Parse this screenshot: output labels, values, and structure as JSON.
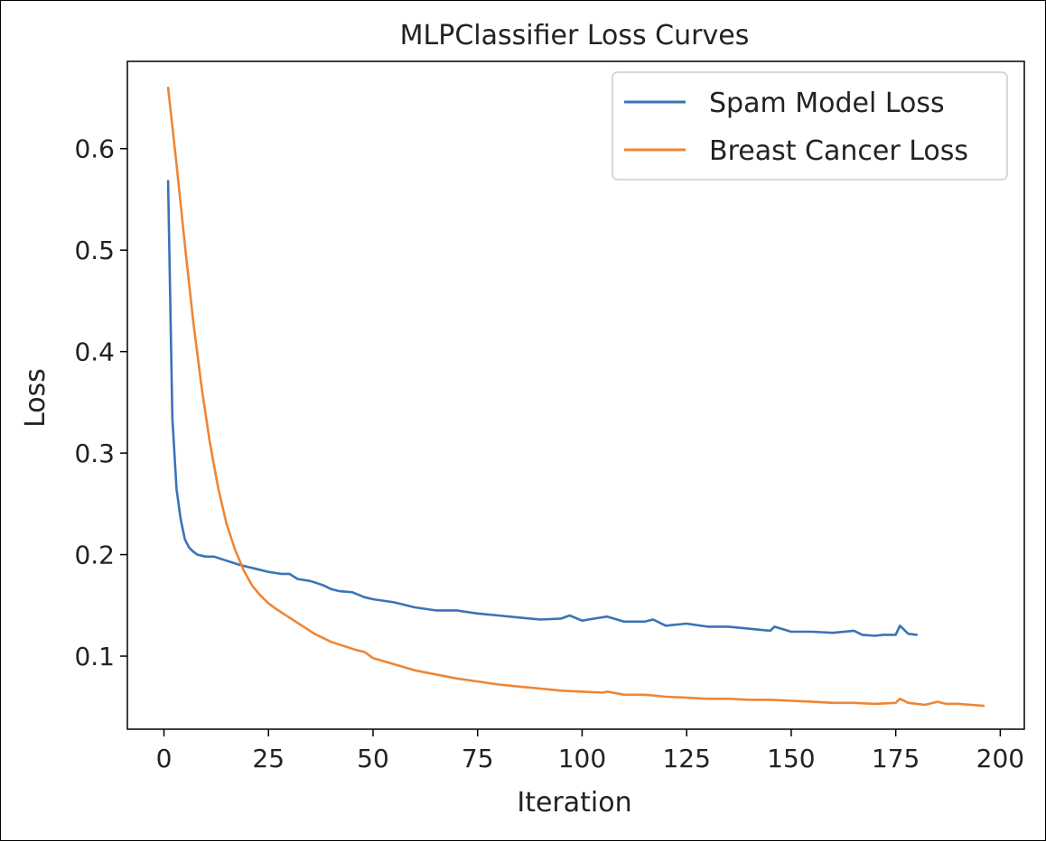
{
  "chart_data": {
    "type": "line",
    "title": "MLPClassifier Loss Curves",
    "xlabel": "Iteration",
    "ylabel": "Loss",
    "xlim": [
      -8.75,
      205.75
    ],
    "ylim": [
      0.028,
      0.686
    ],
    "xticks": [
      0,
      25,
      50,
      75,
      100,
      125,
      150,
      175,
      200
    ],
    "yticks": [
      0.1,
      0.2,
      0.3,
      0.4,
      0.5,
      0.6
    ],
    "xtick_labels": [
      "0",
      "25",
      "50",
      "75",
      "100",
      "125",
      "150",
      "175",
      "200"
    ],
    "ytick_labels": [
      "0.1",
      "0.2",
      "0.3",
      "0.4",
      "0.5",
      "0.6"
    ],
    "grid": false,
    "legend_position": "top-right",
    "series": [
      {
        "name": "Spam Model Loss",
        "color": "#3a73b8",
        "x": [
          1,
          2,
          3,
          4,
          5,
          6,
          7,
          8,
          10,
          12,
          15,
          18,
          20,
          22,
          25,
          28,
          30,
          32,
          35,
          38,
          40,
          42,
          45,
          48,
          50,
          55,
          60,
          65,
          70,
          75,
          80,
          85,
          90,
          95,
          97,
          100,
          103,
          106,
          110,
          115,
          117,
          120,
          125,
          130,
          135,
          140,
          145,
          146,
          150,
          155,
          160,
          165,
          167,
          170,
          172,
          175,
          176,
          178,
          180
        ],
        "y": [
          0.568,
          0.335,
          0.265,
          0.235,
          0.215,
          0.207,
          0.203,
          0.2,
          0.198,
          0.198,
          0.194,
          0.19,
          0.188,
          0.186,
          0.183,
          0.181,
          0.181,
          0.176,
          0.174,
          0.17,
          0.166,
          0.164,
          0.163,
          0.158,
          0.156,
          0.153,
          0.148,
          0.145,
          0.145,
          0.142,
          0.14,
          0.138,
          0.136,
          0.137,
          0.14,
          0.135,
          0.137,
          0.139,
          0.134,
          0.134,
          0.136,
          0.13,
          0.132,
          0.129,
          0.129,
          0.127,
          0.125,
          0.129,
          0.124,
          0.124,
          0.123,
          0.125,
          0.121,
          0.12,
          0.121,
          0.121,
          0.13,
          0.122,
          0.121
        ]
      },
      {
        "name": "Breast Cancer Loss",
        "color": "#ef8534",
        "x": [
          1,
          3,
          5,
          7,
          9,
          11,
          13,
          15,
          17,
          19,
          21,
          23,
          25,
          27,
          30,
          33,
          36,
          40,
          43,
          46,
          48,
          50,
          55,
          60,
          65,
          70,
          75,
          80,
          85,
          90,
          95,
          100,
          105,
          106,
          110,
          115,
          120,
          125,
          130,
          135,
          140,
          145,
          150,
          155,
          160,
          165,
          170,
          175,
          176,
          178,
          180,
          182,
          185,
          187,
          190,
          193,
          196
        ],
        "y": [
          0.66,
          0.585,
          0.505,
          0.43,
          0.365,
          0.31,
          0.265,
          0.23,
          0.205,
          0.185,
          0.17,
          0.16,
          0.152,
          0.146,
          0.138,
          0.13,
          0.122,
          0.114,
          0.11,
          0.106,
          0.104,
          0.098,
          0.092,
          0.086,
          0.082,
          0.078,
          0.075,
          0.072,
          0.07,
          0.068,
          0.066,
          0.065,
          0.064,
          0.065,
          0.062,
          0.062,
          0.06,
          0.059,
          0.058,
          0.058,
          0.057,
          0.057,
          0.056,
          0.055,
          0.054,
          0.054,
          0.053,
          0.054,
          0.058,
          0.054,
          0.053,
          0.052,
          0.055,
          0.053,
          0.053,
          0.052,
          0.051
        ]
      }
    ]
  }
}
